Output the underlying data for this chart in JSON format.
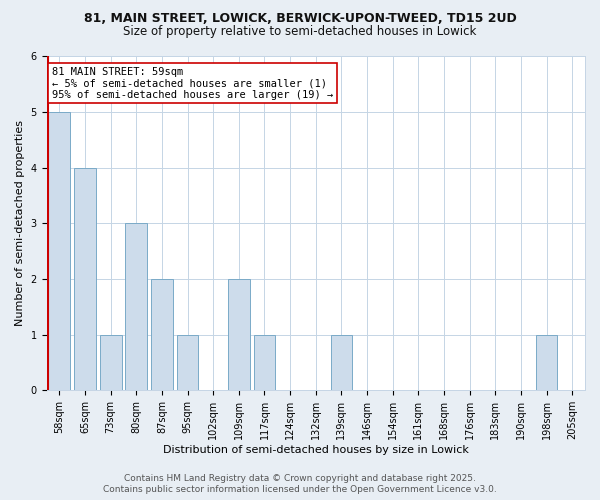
{
  "title_line1": "81, MAIN STREET, LOWICK, BERWICK-UPON-TWEED, TD15 2UD",
  "title_line2": "Size of property relative to semi-detached houses in Lowick",
  "xlabel": "Distribution of semi-detached houses by size in Lowick",
  "ylabel": "Number of semi-detached properties",
  "footer_line1": "Contains HM Land Registry data © Crown copyright and database right 2025.",
  "footer_line2": "Contains public sector information licensed under the Open Government Licence v3.0.",
  "categories": [
    "58sqm",
    "65sqm",
    "73sqm",
    "80sqm",
    "87sqm",
    "95sqm",
    "102sqm",
    "109sqm",
    "117sqm",
    "124sqm",
    "132sqm",
    "139sqm",
    "146sqm",
    "154sqm",
    "161sqm",
    "168sqm",
    "176sqm",
    "183sqm",
    "190sqm",
    "198sqm",
    "205sqm"
  ],
  "values": [
    5,
    4,
    1,
    3,
    2,
    1,
    0,
    2,
    1,
    0,
    0,
    1,
    0,
    0,
    0,
    0,
    0,
    0,
    0,
    1,
    0
  ],
  "bar_color": "#cddceb",
  "bar_edge_color": "#7aaac8",
  "highlight_color": "#cc0000",
  "annotation_text": "81 MAIN STREET: 59sqm\n← 5% of semi-detached houses are smaller (1)\n95% of semi-detached houses are larger (19) →",
  "annotation_box_facecolor": "#ffffff",
  "annotation_box_edgecolor": "#cc0000",
  "ylim": [
    0,
    6
  ],
  "yticks": [
    0,
    1,
    2,
    3,
    4,
    5,
    6
  ],
  "background_color": "#e8eef4",
  "plot_background_color": "#ffffff",
  "grid_color": "#c5d5e5",
  "title_fontsize": 9,
  "subtitle_fontsize": 8.5,
  "axis_label_fontsize": 8,
  "tick_fontsize": 7,
  "annotation_fontsize": 7.5,
  "footer_fontsize": 6.5
}
